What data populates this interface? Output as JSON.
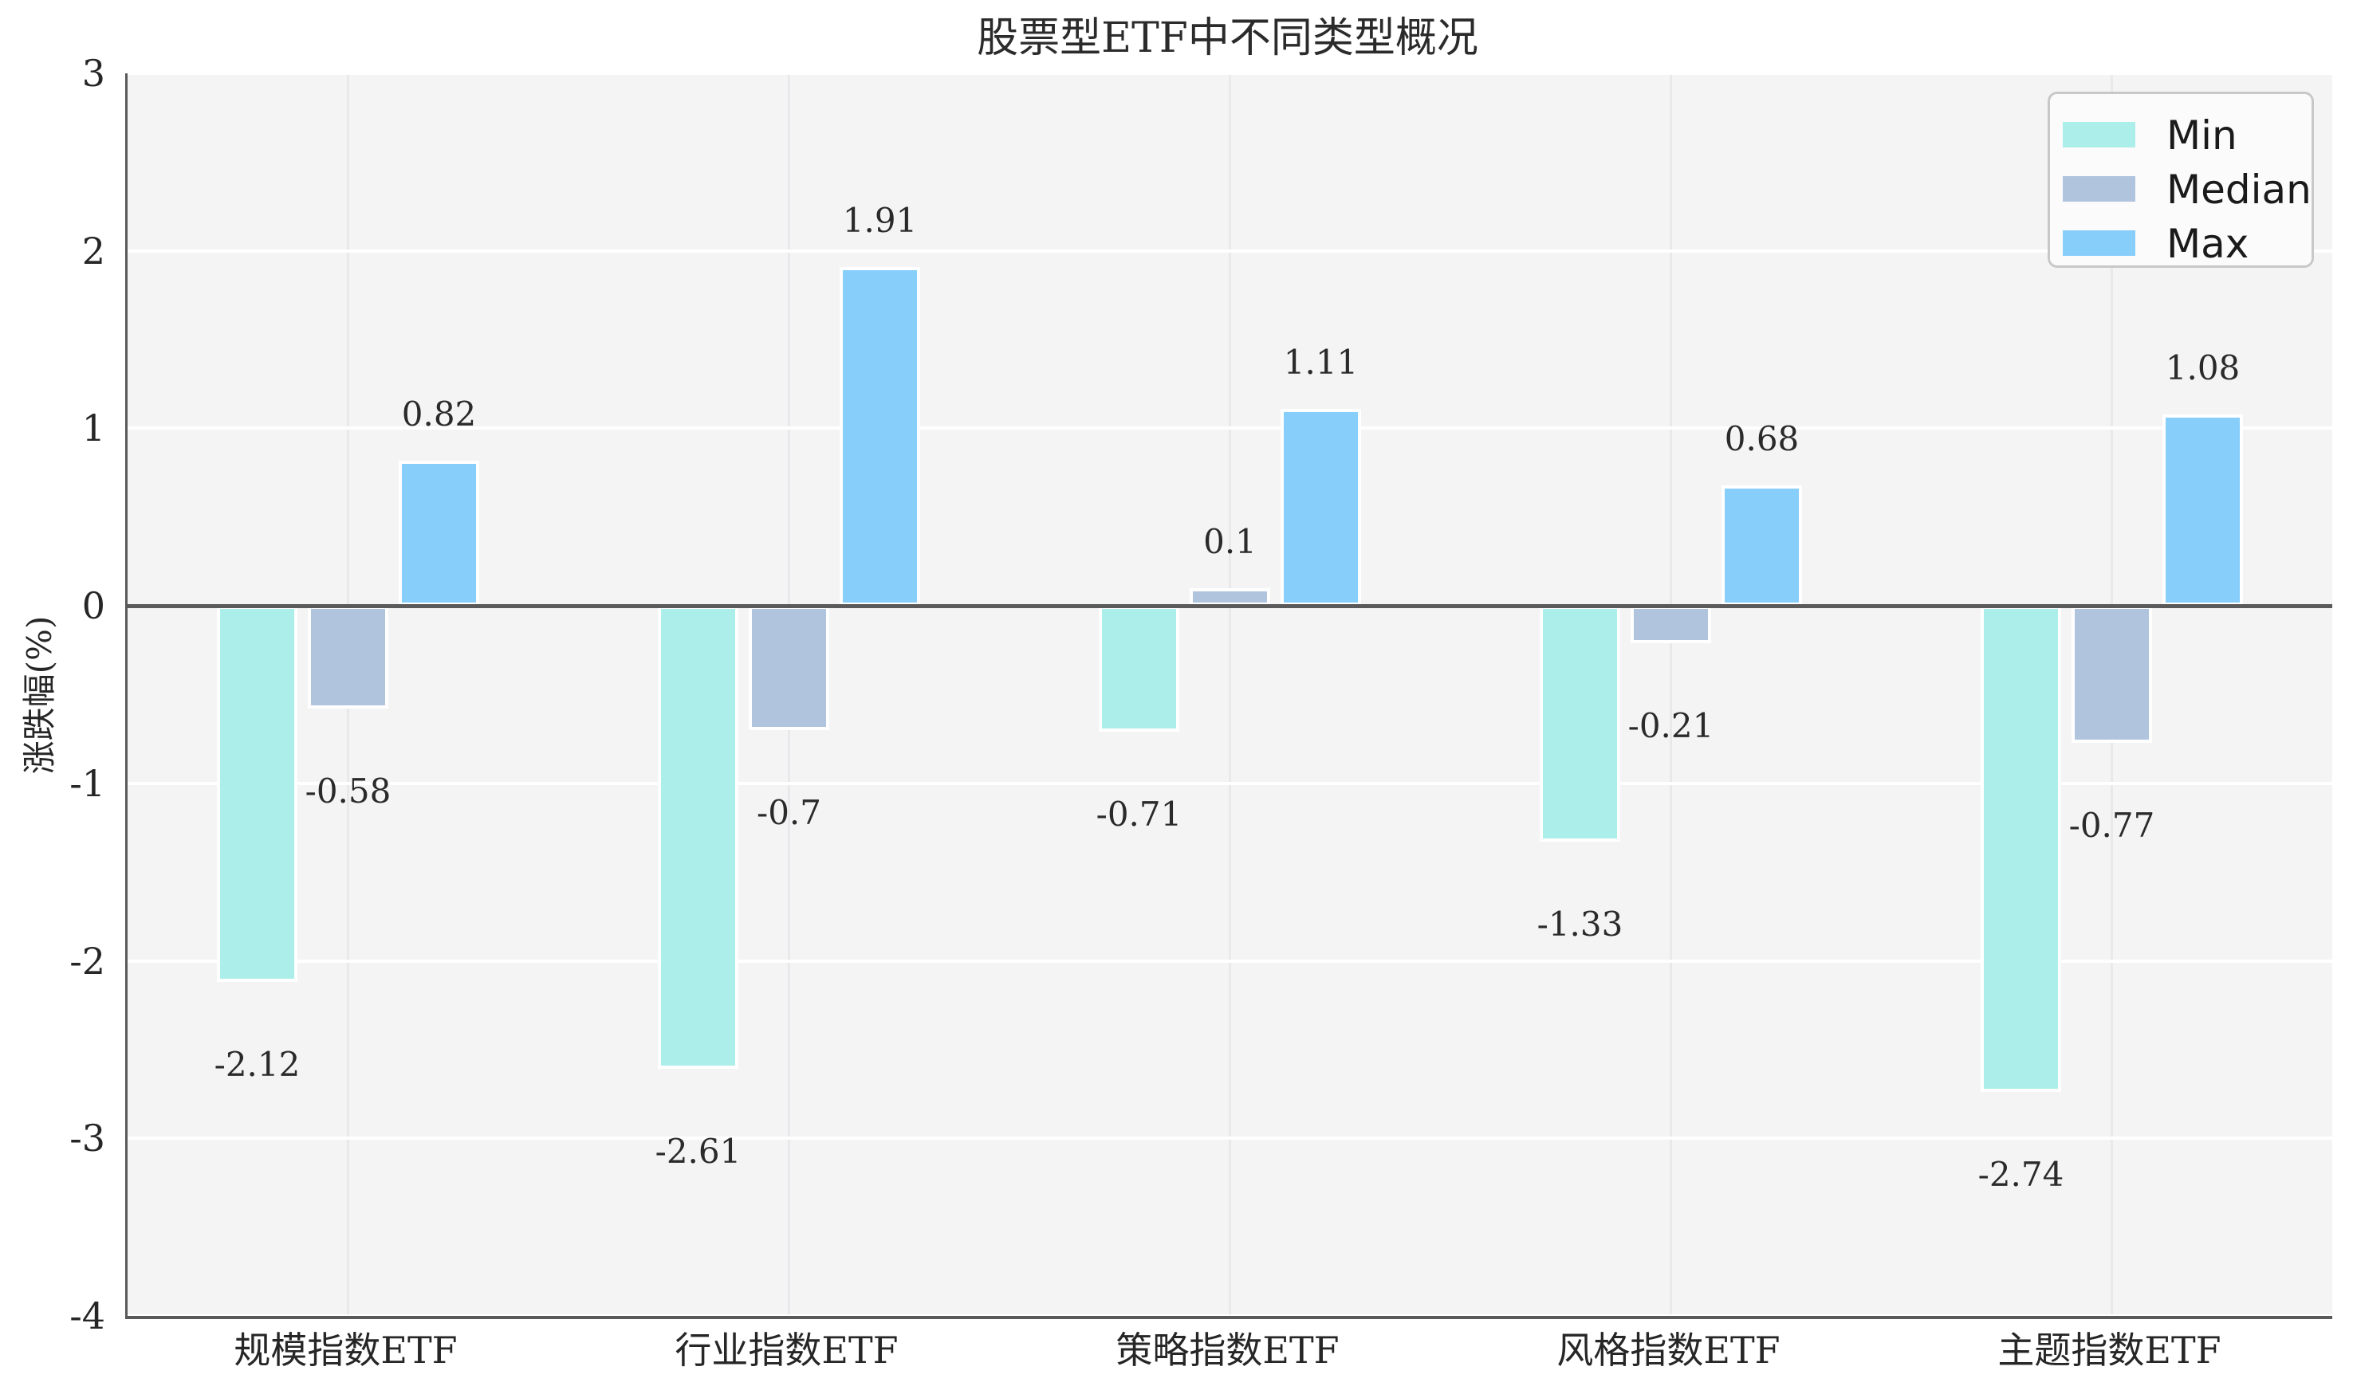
{
  "title": "股票型ETF中不同类型概况",
  "y_axis": {
    "label": "涨跌幅(%)",
    "ticks": [
      "3",
      "2",
      "1",
      "0",
      "-1",
      "-2",
      "-3",
      "-4"
    ]
  },
  "legend": {
    "items": [
      "Min",
      "Median",
      "Max"
    ]
  },
  "colors": {
    "min": "#ACEEE9",
    "median": "#B0C4DE",
    "max": "#87CEFA",
    "plot_background": "#f4f4f5",
    "horizontal_grid": "#ffffff",
    "vertical_grid": "#e9e9eb",
    "zero_line": "#5a5a5a"
  },
  "chart_data": {
    "type": "bar",
    "title": "股票型ETF中不同类型概况",
    "categories": [
      "规模指数ETF",
      "行业指数ETF",
      "策略指数ETF",
      "风格指数ETF",
      "主题指数ETF"
    ],
    "series": [
      {
        "name": "Min",
        "color": "#ACEEE9",
        "values": [
          -2.12,
          -2.61,
          -0.71,
          -1.33,
          -2.74
        ]
      },
      {
        "name": "Median",
        "color": "#B0C4DE",
        "values": [
          -0.58,
          -0.7,
          0.1,
          -0.21,
          -0.77
        ]
      },
      {
        "name": "Max",
        "color": "#87CEFA",
        "values": [
          0.82,
          1.91,
          1.11,
          0.68,
          1.08
        ]
      }
    ],
    "xlabel": "",
    "ylabel": "涨跌幅(%)",
    "ylim": [
      -4,
      3
    ],
    "yticks": [
      3,
      2,
      1,
      0,
      -1,
      -2,
      -3,
      -4
    ],
    "grid": true,
    "legend_position": "upper right",
    "bar_labels_shown": true
  }
}
